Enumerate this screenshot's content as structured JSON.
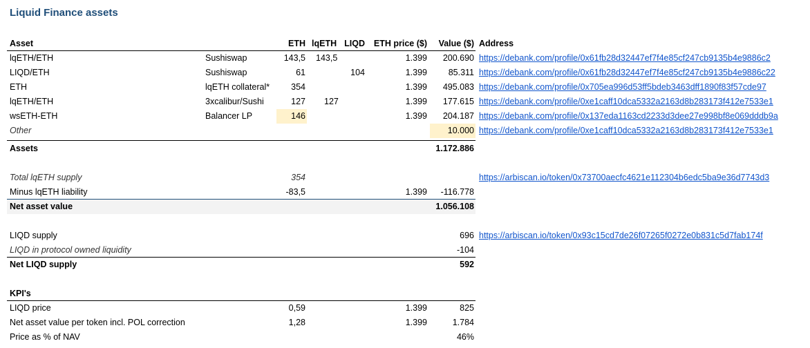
{
  "title": "Liquid Finance assets",
  "header": {
    "asset": "Asset",
    "eth": "ETH",
    "lqeth": "lqETH",
    "liqd": "LIQD",
    "eth_price": "ETH price ($)",
    "value": "Value ($)",
    "address": "Address"
  },
  "assets": [
    {
      "name": "lqETH/ETH",
      "sub": "Sushiswap",
      "eth": "143,5",
      "lqeth": "143,5",
      "liqd": "",
      "price": "1.399",
      "value": "200.690",
      "address": "https://debank.com/profile/0x61fb28d32447ef7f4e85cf247cb9135b4e9886c2"
    },
    {
      "name": "LIQD/ETH",
      "sub": "Sushiswap",
      "eth": "61",
      "lqeth": "",
      "liqd": "104",
      "price": "1.399",
      "value": "85.311",
      "address": "https://debank.com/profile/0x61fb28d32447ef7f4e85cf247cb9135b4e9886c2",
      "address_suffix": "2"
    },
    {
      "name": "ETH",
      "sub": "lqETH collateral*",
      "eth": "354",
      "lqeth": "",
      "liqd": "",
      "price": "1.399",
      "value": "495.083",
      "address": "https://debank.com/profile/0x705ea996d53ff5bdeb3463dff1890f83f57cde97"
    },
    {
      "name": "lqETH/ETH",
      "sub": "3xcalibur/Sushi",
      "eth": "127",
      "lqeth": "127",
      "liqd": "",
      "price": "1.399",
      "value": "177.615",
      "address": "https://debank.com/profile/0xe1caff10dca5332a2163d8b283173f412e7533e1"
    },
    {
      "name": "wsETH-ETH",
      "sub": "Balancer LP",
      "eth": "146",
      "lqeth": "",
      "liqd": "",
      "price": "1.399",
      "value": "204.187",
      "address": "https://debank.com/profile/0x137eda1163cd2233d3dee27e998bf8e069dddb9a"
    },
    {
      "name": "Other",
      "sub": "",
      "eth": "",
      "lqeth": "",
      "liqd": "",
      "price": "",
      "value": "10.000",
      "address": "https://debank.com/profile/0xe1caff10dca5332a2163d8b283173f412e7533e1"
    }
  ],
  "assets_total": {
    "label": "Assets",
    "value": "1.172.886"
  },
  "supply": {
    "total_label": "Total lqETH supply",
    "total_eth": "354",
    "total_address": "https://arbiscan.io/token/0x73700aecfc4621e112304b6edc5ba9e36d7743d3",
    "minus_label": "Minus lqETH liability",
    "minus_eth": "-83,5",
    "minus_price": "1.399",
    "minus_value": "-116.778"
  },
  "nav": {
    "label": "Net asset value",
    "value": "1.056.108"
  },
  "liqd": {
    "supply_label": "LIQD supply",
    "supply_value": "696",
    "supply_address": "https://arbiscan.io/token/0x93c15cd7de26f07265f0272e0b831c5d7fab174f",
    "pol_label": "LIQD in protocol owned liquidity",
    "pol_value": "-104",
    "net_label": "Net LIQD supply",
    "net_value": "592"
  },
  "kpis": {
    "heading": "KPI's",
    "rows": [
      {
        "label": "LIQD price",
        "eth": "0,59",
        "price": "1.399",
        "value": "825"
      },
      {
        "label": "Net asset value per token incl. POL correction",
        "eth": "1,28",
        "price": "1.399",
        "value": "1.784"
      },
      {
        "label": "Price as % of NAV",
        "eth": "",
        "price": "",
        "value": "46%"
      }
    ]
  }
}
